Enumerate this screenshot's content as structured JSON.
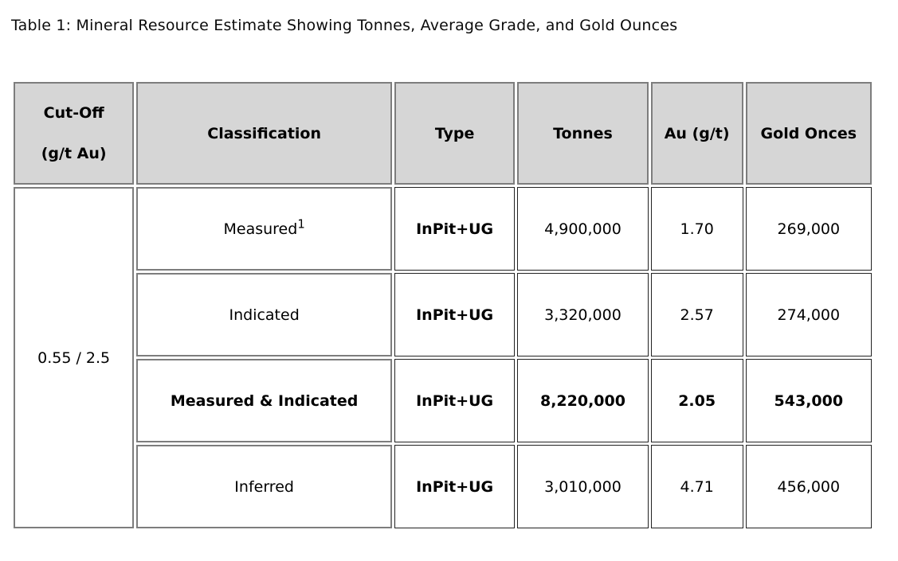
{
  "caption": "Table 1: Mineral Resource Estimate Showing Tonnes, Average Grade, and Gold Ounces",
  "table": {
    "columns": {
      "cutoff": {
        "label_lines": [
          "Cut-Off",
          "(g/t Au)"
        ]
      },
      "classification": {
        "label": "Classification"
      },
      "type": {
        "label": "Type"
      },
      "tonnes": {
        "label": "Tonnes"
      },
      "au": {
        "label": "Au (g/t)"
      },
      "gold": {
        "label": "Gold Onces"
      }
    },
    "cutoff_value": "0.55 / 2.5",
    "rows": [
      {
        "classification": "Measured",
        "classification_sup": "1",
        "type": "InPit+UG",
        "tonnes": "4,900,000",
        "au": "1.70",
        "gold": "269,000",
        "bold": false
      },
      {
        "classification": "Indicated",
        "type": "InPit+UG",
        "tonnes": "3,320,000",
        "au": "2.57",
        "gold": "274,000",
        "bold": false
      },
      {
        "classification": "Measured & Indicated",
        "type": "InPit+UG",
        "tonnes": "8,220,000",
        "au": "2.05",
        "gold": "543,000",
        "bold": true
      },
      {
        "classification": "Inferred",
        "type": "InPit+UG",
        "tonnes": "3,010,000",
        "au": "4.71",
        "gold": "456,000",
        "bold": false
      }
    ],
    "colors": {
      "header_bg": "#d6d6d6",
      "border_gray": "#7d7d7d",
      "border_dark": "#222222",
      "text": "#000000"
    }
  }
}
